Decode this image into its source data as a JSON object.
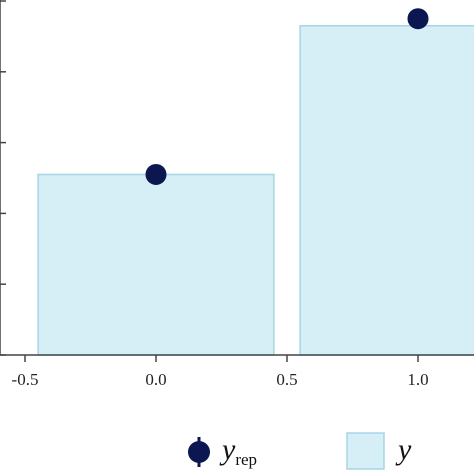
{
  "chart_data": {
    "type": "bar",
    "x_range": [
      -0.5,
      1.0
    ],
    "x_tick_values": [
      -0.5,
      0.0,
      0.5,
      1.0
    ],
    "x_tick_labels": [
      "-0.5",
      "0.0",
      "0.5",
      "1.0"
    ],
    "y_range": [
      0,
      1
    ],
    "bars": [
      {
        "x_start": -0.45,
        "x_end": 0.45,
        "value": 0.51
      },
      {
        "x_start": 0.55,
        "x_end": 1.45,
        "value": 0.93
      }
    ],
    "points": [
      {
        "x": 0.0,
        "value": 0.51
      },
      {
        "x": 1.0,
        "value": 0.95
      }
    ],
    "legend": {
      "placement": "bottom",
      "items": [
        {
          "main": "y",
          "sub": "rep",
          "marker": "point-with-interval"
        },
        {
          "main": "y",
          "sub": "",
          "marker": "bar"
        }
      ]
    },
    "colors": {
      "bar_fill": "#d6eef5",
      "bar_stroke": "#a6d5e6",
      "point": "#0c1650",
      "axis": "#444444"
    }
  }
}
